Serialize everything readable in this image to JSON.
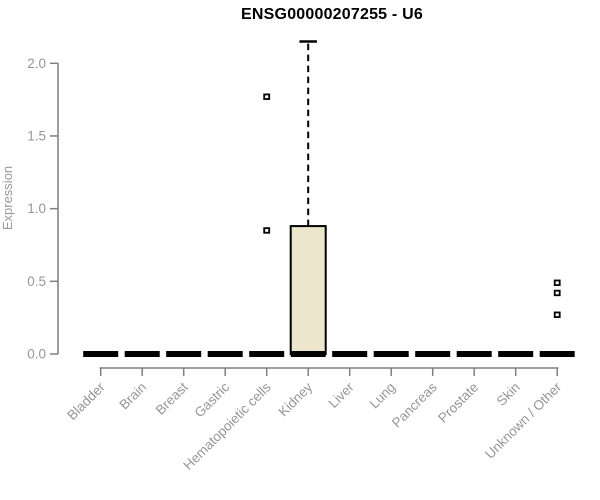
{
  "chart_data": {
    "type": "boxplot",
    "title": "ENSG00000207255 - U6",
    "ylabel": "Expression",
    "xlabel": "",
    "ylim": [
      0.0,
      2.17
    ],
    "yticks": [
      0.0,
      0.5,
      1.0,
      1.5,
      2.0
    ],
    "grid": false,
    "legend": false,
    "categories": [
      "Bladder",
      "Brain",
      "Breast",
      "Gastric",
      "Hematopoietic cells",
      "Kidney",
      "Liver",
      "Lung",
      "Pancreas",
      "Prostate",
      "Skin",
      "Unknown / Other"
    ],
    "series": [
      {
        "category": "Bladder",
        "median": 0,
        "q1": 0,
        "q3": 0,
        "whisker_low": 0,
        "whisker_high": 0,
        "outliers": []
      },
      {
        "category": "Brain",
        "median": 0,
        "q1": 0,
        "q3": 0,
        "whisker_low": 0,
        "whisker_high": 0,
        "outliers": []
      },
      {
        "category": "Breast",
        "median": 0,
        "q1": 0,
        "q3": 0,
        "whisker_low": 0,
        "whisker_high": 0,
        "outliers": []
      },
      {
        "category": "Gastric",
        "median": 0,
        "q1": 0,
        "q3": 0,
        "whisker_low": 0,
        "whisker_high": 0,
        "outliers": []
      },
      {
        "category": "Hematopoietic cells",
        "median": 0,
        "q1": 0,
        "q3": 0,
        "whisker_low": 0,
        "whisker_high": 0,
        "outliers": [
          1.77,
          0.85
        ]
      },
      {
        "category": "Kidney",
        "median": 0,
        "q1": 0,
        "q3": 0.88,
        "whisker_low": 0,
        "whisker_high": 2.15,
        "outliers": []
      },
      {
        "category": "Liver",
        "median": 0,
        "q1": 0,
        "q3": 0,
        "whisker_low": 0,
        "whisker_high": 0,
        "outliers": []
      },
      {
        "category": "Lung",
        "median": 0,
        "q1": 0,
        "q3": 0,
        "whisker_low": 0,
        "whisker_high": 0,
        "outliers": []
      },
      {
        "category": "Pancreas",
        "median": 0,
        "q1": 0,
        "q3": 0,
        "whisker_low": 0,
        "whisker_high": 0,
        "outliers": []
      },
      {
        "category": "Prostate",
        "median": 0,
        "q1": 0,
        "q3": 0,
        "whisker_low": 0,
        "whisker_high": 0,
        "outliers": []
      },
      {
        "category": "Skin",
        "median": 0,
        "q1": 0,
        "q3": 0,
        "whisker_low": 0,
        "whisker_high": 0,
        "outliers": []
      },
      {
        "category": "Unknown / Other",
        "median": 0,
        "q1": 0,
        "q3": 0,
        "whisker_low": 0,
        "whisker_high": 0,
        "outliers": [
          0.49,
          0.42,
          0.27
        ]
      }
    ],
    "colors": {
      "box_fill": "#ECE7CC",
      "box_line": "#000000",
      "axis_line": "#7f7f7f",
      "tick_text": "#969696",
      "title_text": "#000000"
    }
  }
}
